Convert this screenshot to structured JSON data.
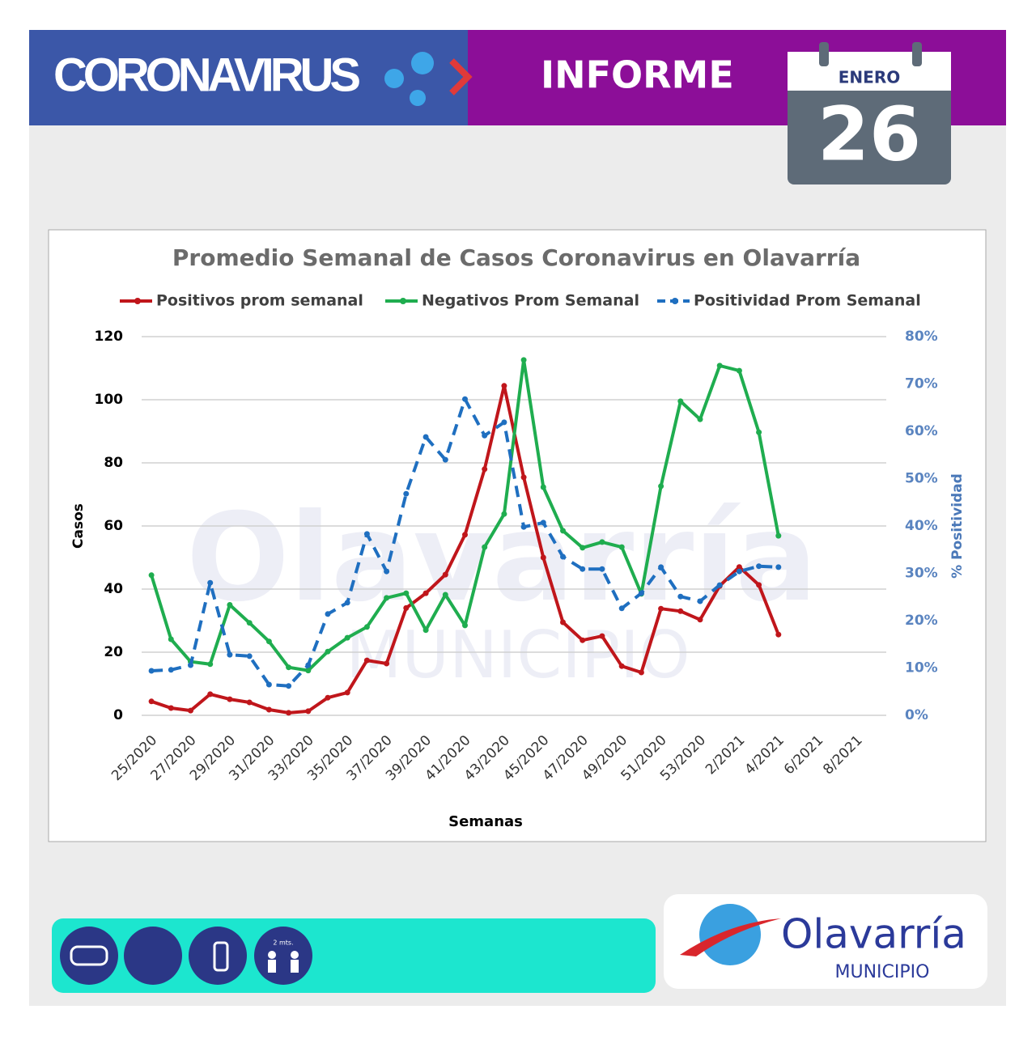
{
  "header": {
    "left_title": "CORONAVIRUS",
    "right_title": "INFORME",
    "month": "ENERO",
    "day": "26"
  },
  "chart_data": {
    "type": "line",
    "title": "Promedio Semanal de Casos Coronavirus en Olavarría",
    "x_label": "Semanas",
    "y_label": "Casos",
    "y2_label": "% Positividad",
    "categories": [
      "25/2020",
      null,
      "27/2020",
      null,
      "29/2020",
      null,
      "31/2020",
      null,
      "33/2020",
      null,
      "35/2020",
      null,
      "37/2020",
      null,
      "39/2020",
      null,
      "41/2020",
      null,
      "43/2020",
      null,
      "45/2020",
      null,
      "47/2020",
      null,
      "49/2020",
      null,
      "51/2020",
      null,
      "53/2020",
      null,
      "2/2021",
      null,
      "4/2021",
      null,
      "6/2021",
      null,
      "8/2021",
      null
    ],
    "ylim": [
      0,
      120
    ],
    "yticks": [
      0,
      20,
      40,
      60,
      80,
      100,
      120
    ],
    "y2lim": [
      0,
      80
    ],
    "y2ticks": [
      {
        "value": 0,
        "label": "0%"
      },
      {
        "value": 10,
        "label": "10%"
      },
      {
        "value": 20,
        "label": "20%"
      },
      {
        "value": 30,
        "label": "30%"
      },
      {
        "value": 40,
        "label": "40%"
      },
      {
        "value": 50,
        "label": "50%"
      },
      {
        "value": 60,
        "label": "60%"
      },
      {
        "value": 70,
        "label": "70%"
      },
      {
        "value": 80,
        "label": "80%"
      }
    ],
    "grid": true,
    "legend": "top",
    "series": [
      {
        "name": "Positivos prom semanal",
        "color": "#c0161b",
        "values": [
          4.4,
          2.3,
          1.5,
          6.7,
          5.1,
          4.1,
          1.8,
          0.8,
          1.3,
          5.6,
          7.2,
          17.4,
          16.4,
          34,
          38.7,
          44.6,
          57.2,
          78,
          104.4,
          75.4,
          50,
          29.5,
          23.8,
          25.1,
          15.6,
          13.6,
          33.8,
          33,
          30.3,
          41,
          47,
          41.3,
          25.6,
          null,
          null,
          null,
          null,
          null
        ]
      },
      {
        "name": "Negativos Prom Semanal",
        "color": "#1fad4f",
        "values": [
          44.4,
          24.1,
          17,
          16.2,
          35,
          29.3,
          23.4,
          15.2,
          14.2,
          20.2,
          24.6,
          28,
          37.2,
          38.7,
          27,
          38.2,
          28.5,
          53.3,
          63.8,
          112.6,
          72.3,
          58.5,
          53.1,
          54.9,
          53.3,
          38.5,
          72.6,
          99.5,
          93.8,
          110.8,
          109.2,
          89.7,
          56.9,
          null,
          null,
          null,
          null,
          null
        ]
      },
      {
        "name": "Positividad Prom Semanal",
        "color": "#1f6fc0",
        "axis": "y2",
        "dashed": true,
        "values": [
          9.4,
          9.6,
          10.6,
          28,
          12.8,
          12.5,
          6.5,
          6.2,
          10.6,
          21.4,
          23.8,
          38.3,
          30.4,
          46.8,
          58.8,
          54,
          66.8,
          59.1,
          61.9,
          39.8,
          40.7,
          33.5,
          30.9,
          30.9,
          22.6,
          25.8,
          31.3,
          25.1,
          24.1,
          27.5,
          30.4,
          31.5,
          31.3,
          null,
          null,
          null,
          null,
          null
        ]
      }
    ]
  },
  "footer": {
    "icon_label": "2 mts.",
    "logo_name": "Olavarría",
    "logo_sub": "MUNICIPIO"
  }
}
